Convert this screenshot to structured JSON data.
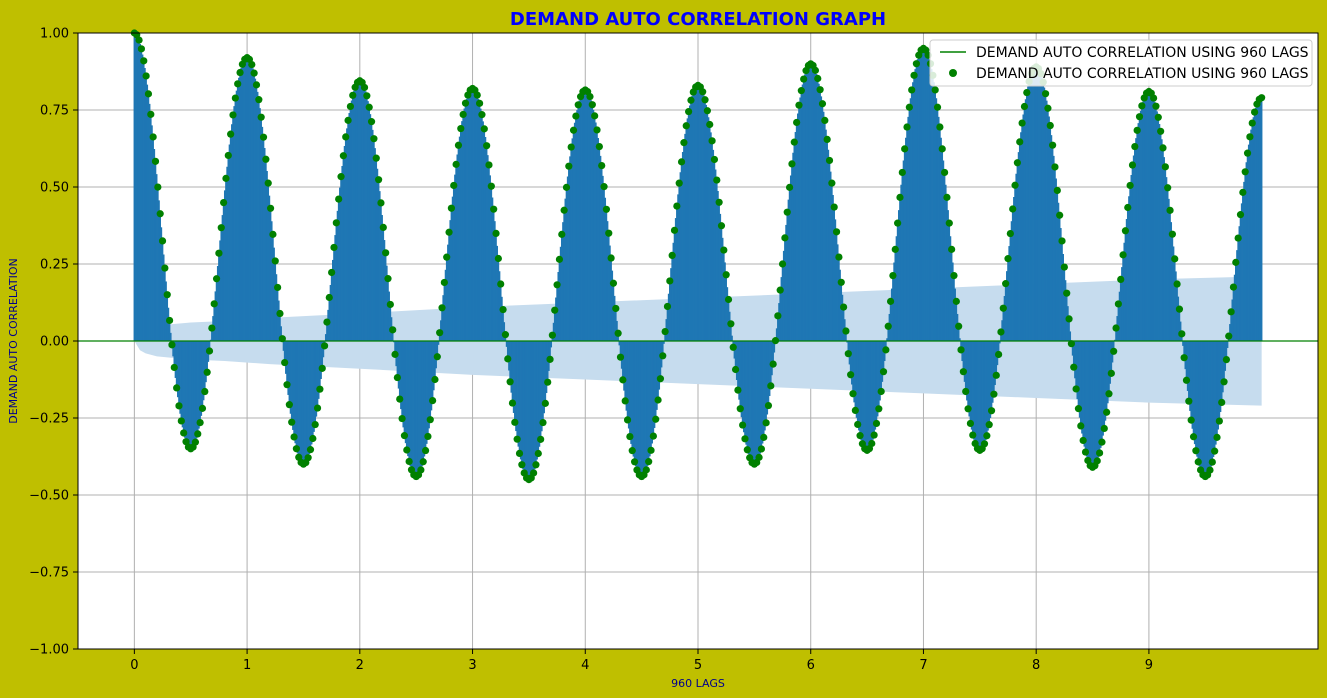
{
  "figure": {
    "background": "#bfbf00"
  },
  "chart_data": {
    "type": "line",
    "title": "DEMAND AUTO CORRELATION GRAPH",
    "title_color": "#0000ff",
    "xlabel": "960 LAGS",
    "ylabel": "DEMAND AUTO CORRELATION",
    "label_color": "#00008b",
    "xlim": [
      -0.5,
      10.5
    ],
    "ylim": [
      -1.0,
      1.0
    ],
    "x_ticks": [
      0,
      1,
      2,
      3,
      4,
      5,
      6,
      7,
      8,
      9
    ],
    "y_ticks": [
      -1.0,
      -0.75,
      -0.5,
      -0.25,
      0.0,
      0.25,
      0.5,
      0.75,
      1.0
    ],
    "y_tick_labels": [
      "−1.00",
      "−0.75",
      "−0.50",
      "−0.25",
      "0.00",
      "0.25",
      "0.50",
      "0.75",
      "1.00"
    ],
    "grid": true,
    "n_lags": 960,
    "x_max": 10.0,
    "period": 1.0,
    "peaks": [
      {
        "x": 1,
        "y": 0.92
      },
      {
        "x": 2,
        "y": 0.845
      },
      {
        "x": 3,
        "y": 0.82
      },
      {
        "x": 4,
        "y": 0.815
      },
      {
        "x": 5,
        "y": 0.83
      },
      {
        "x": 6,
        "y": 0.9
      },
      {
        "x": 7,
        "y": 0.95
      },
      {
        "x": 8,
        "y": 0.89
      },
      {
        "x": 9,
        "y": 0.81
      }
    ],
    "troughs": [
      {
        "x": 0.5,
        "y": -0.35
      },
      {
        "x": 1.5,
        "y": -0.4
      },
      {
        "x": 2.5,
        "y": -0.44
      },
      {
        "x": 3.5,
        "y": -0.45
      },
      {
        "x": 4.5,
        "y": -0.44
      },
      {
        "x": 5.5,
        "y": -0.4
      },
      {
        "x": 6.5,
        "y": -0.355
      },
      {
        "x": 7.5,
        "y": -0.355
      },
      {
        "x": 8.5,
        "y": -0.41
      },
      {
        "x": 9.5,
        "y": -0.44
      }
    ],
    "end_value": {
      "x": 10.0,
      "y": 0.79
    },
    "confidence_band": {
      "x": [
        0,
        0.05,
        0.1,
        0.2,
        0.35,
        0.5,
        0.8,
        1.2,
        2,
        3,
        4,
        5,
        6,
        7,
        8,
        9,
        10
      ],
      "upper": [
        0.0,
        0.03,
        0.04,
        0.05,
        0.055,
        0.06,
        0.065,
        0.075,
        0.09,
        0.11,
        0.125,
        0.14,
        0.155,
        0.17,
        0.185,
        0.2,
        0.21
      ],
      "color": "#c6dcee"
    },
    "series": [
      {
        "name": "DEMAND AUTO CORRELATION USING 960 LAGS",
        "kind": "line",
        "color": "#008000"
      },
      {
        "name": "DEMAND AUTO CORRELATION USING 960 LAGS",
        "kind": "markers",
        "color": "#008000"
      }
    ],
    "bar_color": "#1f77b4",
    "legend_position": "top-right"
  }
}
